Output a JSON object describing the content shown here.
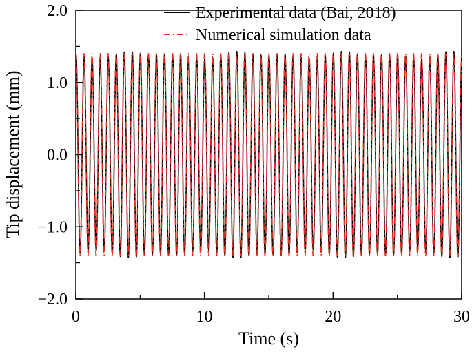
{
  "chart_data": {
    "type": "line",
    "title": "",
    "xlabel": "Time (s)",
    "ylabel": "Tip displacement (mm)",
    "xlim": [
      0,
      30
    ],
    "ylim": [
      -2.0,
      2.0
    ],
    "x_ticks": [
      0,
      10,
      20,
      30
    ],
    "x_tick_labels": [
      "0",
      "10",
      "20",
      "30"
    ],
    "x_minor_ticks": [
      5,
      15,
      25
    ],
    "y_ticks": [
      -2.0,
      -1.0,
      0.0,
      1.0,
      2.0
    ],
    "y_tick_labels": [
      "−2.0",
      "−1.0",
      "0.0",
      "1.0",
      "2.0"
    ],
    "y_minor_ticks": [
      -1.5,
      -0.5,
      0.5,
      1.5
    ],
    "grid": false,
    "legend_position": "top-right",
    "series": [
      {
        "name": "Experimental data (Bai, 2018)",
        "color": "#000000",
        "line_style": "solid",
        "frequency_hz": 1.6,
        "amplitude_mm": 1.38,
        "phase_rad": 1.35,
        "amplitude_jitter_mm": 0.06
      },
      {
        "name": "Numerical simulation data",
        "color": "#e8291c",
        "line_style": "dash-dot",
        "frequency_hz": 1.6,
        "amplitude_mm": 1.4,
        "phase_rad": 1.45,
        "amplitude_jitter_mm": 0.0
      }
    ]
  }
}
